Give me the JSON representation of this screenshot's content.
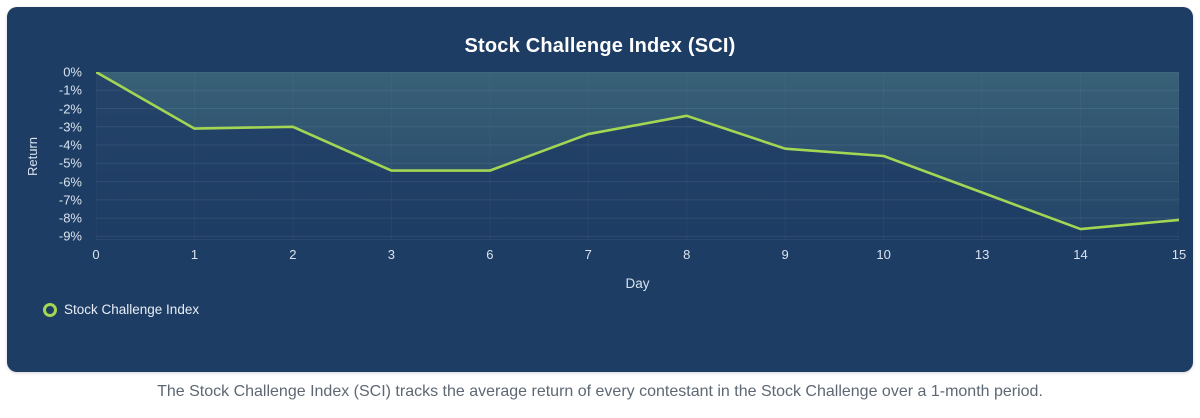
{
  "panel": {
    "background": "#1e3d64",
    "legend": {
      "label": "Stock Challenge Index",
      "marker_color": "#a3d653"
    }
  },
  "caption": "The Stock Challenge Index (SCI) tracks the average return of every contestant in the Stock Challenge over a 1-month period.",
  "chart_data": {
    "type": "line",
    "title": "Stock Challenge Index (SCI)",
    "xlabel": "Day",
    "ylabel": "Return",
    "categories": [
      "0",
      "1",
      "2",
      "3",
      "6",
      "7",
      "8",
      "9",
      "10",
      "13",
      "14",
      "15"
    ],
    "series": [
      {
        "name": "Stock Challenge Index",
        "values": [
          0,
          -3.1,
          -3.0,
          -5.4,
          -5.4,
          -3.4,
          -2.4,
          -4.2,
          -4.6,
          -6.6,
          -8.6,
          -8.1
        ]
      }
    ],
    "yticks": [
      0,
      -1,
      -2,
      -3,
      -4,
      -5,
      -6,
      -7,
      -8,
      -9
    ],
    "ytick_labels": [
      "0%",
      "-1%",
      "-2%",
      "-3%",
      "-4%",
      "-5%",
      "-6%",
      "-7%",
      "-8%",
      "-9%"
    ],
    "ylim": [
      -9.2,
      0
    ],
    "grid": true,
    "legend_position": "bottom-left",
    "line_color": "#a3d653",
    "fill_color": "#86d6b0"
  }
}
